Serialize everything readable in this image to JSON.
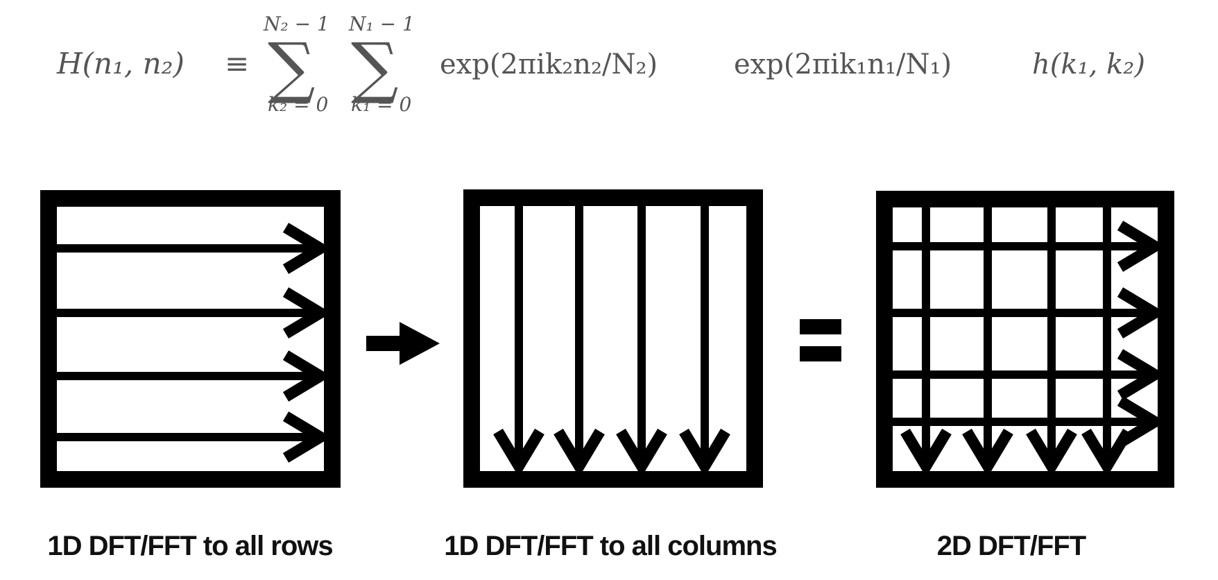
{
  "formula": {
    "lhs": "H(n₁, n₂)",
    "equiv": "≡",
    "sum_outer": {
      "symbol": "∑",
      "upper": "N₂ − 1",
      "lower": "k₂ = 0"
    },
    "sum_inner": {
      "symbol": "∑",
      "upper": "N₁ − 1",
      "lower": "k₁ = 0"
    },
    "term1": "exp(2πik₂n₂/N₂)",
    "term2": "exp(2πik₁n₁/N₁)",
    "term3": "h(k₁, k₂)"
  },
  "panels": [
    {
      "caption": "1D DFT/FFT  to all rows",
      "arrows": "rows"
    },
    {
      "caption": "1D DFT/FFT  to all columns",
      "arrows": "columns"
    },
    {
      "caption": "2D DFT/FFT",
      "arrows": "grid"
    }
  ],
  "operators": {
    "between_1_2": "arrow-right",
    "between_2_3": "equals"
  },
  "colors": {
    "stroke": "#000000",
    "formula": "#555555",
    "background": "#ffffff"
  }
}
